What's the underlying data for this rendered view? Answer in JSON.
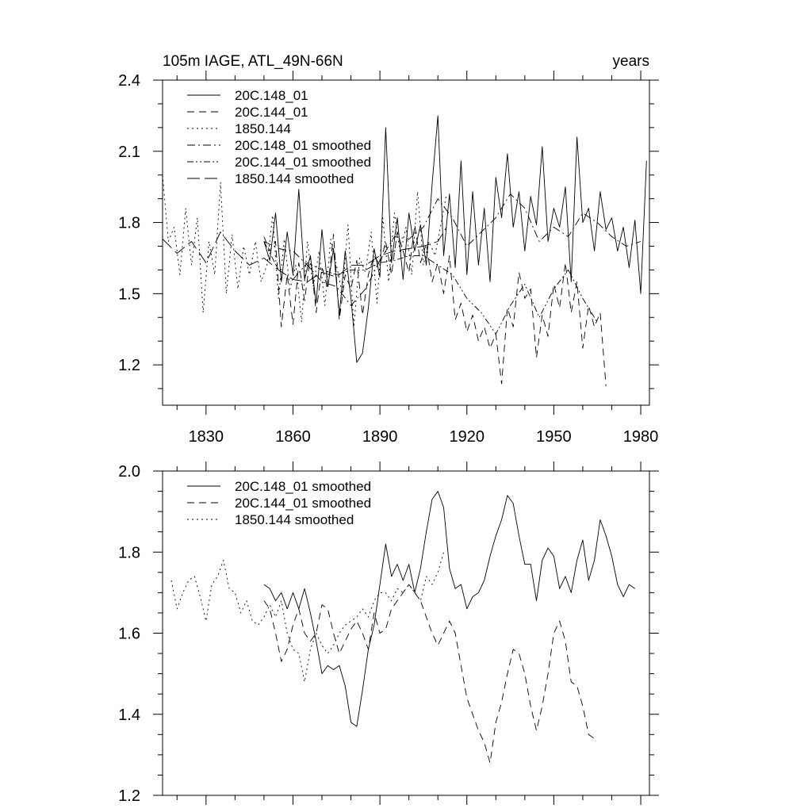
{
  "chart_data": [
    {
      "type": "line",
      "title": "105m IAGE, ATL_49N-66N",
      "units_label": "years",
      "xlim": [
        1815,
        1983
      ],
      "ylim": [
        1.03,
        2.4
      ],
      "x_ticks": [
        1830,
        1860,
        1890,
        1920,
        1950,
        1980
      ],
      "x_tick_labels": [
        "1830",
        "1860",
        "1890",
        "1920",
        "1950",
        "1980"
      ],
      "y_ticks": [
        1.2,
        1.5,
        1.8,
        2.1,
        2.4
      ],
      "y_tick_labels": [
        "1.2",
        "1.5",
        "1.8",
        "2.1",
        "2.4"
      ],
      "legend": [
        "20C.148_01",
        "20C.144_01",
        "1850.144",
        "20C.148_01 smoothed",
        "20C.144_01 smoothed",
        "1850.144 smoothed"
      ],
      "series": [
        {
          "name": "20C.148_01",
          "style": "solid",
          "x": [
            1850,
            1852,
            1854,
            1856,
            1858,
            1860,
            1862,
            1864,
            1866,
            1868,
            1870,
            1872,
            1874,
            1876,
            1878,
            1880,
            1882,
            1884,
            1886,
            1888,
            1890,
            1892,
            1894,
            1896,
            1898,
            1900,
            1902,
            1904,
            1906,
            1908,
            1910,
            1912,
            1914,
            1916,
            1918,
            1920,
            1922,
            1924,
            1926,
            1928,
            1930,
            1932,
            1934,
            1936,
            1938,
            1940,
            1942,
            1944,
            1946,
            1948,
            1950,
            1952,
            1954,
            1956,
            1958,
            1960,
            1962,
            1964,
            1966,
            1968,
            1970,
            1972,
            1974,
            1976,
            1978,
            1980,
            1982
          ],
          "values": [
            1.72,
            1.64,
            1.84,
            1.55,
            1.76,
            1.58,
            1.94,
            1.56,
            1.66,
            1.46,
            1.77,
            1.53,
            1.69,
            1.41,
            1.68,
            1.48,
            1.21,
            1.25,
            1.44,
            1.69,
            1.57,
            2.2,
            1.63,
            1.82,
            1.56,
            1.84,
            1.68,
            1.79,
            1.62,
            1.96,
            2.25,
            1.66,
            1.92,
            1.61,
            2.06,
            1.58,
            1.93,
            1.62,
            1.86,
            1.55,
            1.99,
            1.82,
            2.09,
            1.78,
            1.93,
            1.68,
            1.91,
            1.79,
            2.12,
            1.72,
            1.86,
            1.78,
            1.95,
            1.55,
            2.16,
            1.8,
            1.86,
            1.68,
            1.93,
            1.77,
            1.82,
            1.68,
            1.78,
            1.61,
            1.81,
            1.5,
            2.06
          ]
        },
        {
          "name": "20C.144_01",
          "style": "dashed",
          "x": [
            1850,
            1852,
            1854,
            1856,
            1858,
            1860,
            1862,
            1864,
            1866,
            1868,
            1870,
            1872,
            1874,
            1876,
            1878,
            1880,
            1882,
            1884,
            1886,
            1888,
            1890,
            1892,
            1894,
            1896,
            1898,
            1900,
            1902,
            1904,
            1906,
            1908,
            1910,
            1912,
            1914,
            1916,
            1918,
            1920,
            1922,
            1924,
            1926,
            1928,
            1930,
            1932,
            1934,
            1936,
            1938,
            1940,
            1942,
            1944,
            1946,
            1948,
            1950,
            1952,
            1954,
            1956,
            1958,
            1960,
            1962,
            1964,
            1966,
            1968
          ],
          "values": [
            1.74,
            1.68,
            1.72,
            1.36,
            1.58,
            1.37,
            1.63,
            1.47,
            1.66,
            1.42,
            1.61,
            1.52,
            1.75,
            1.39,
            1.58,
            1.52,
            1.64,
            1.41,
            1.58,
            1.66,
            1.62,
            1.72,
            1.58,
            1.76,
            1.68,
            1.59,
            1.79,
            1.63,
            1.71,
            1.55,
            1.63,
            1.5,
            1.66,
            1.39,
            1.46,
            1.34,
            1.41,
            1.3,
            1.36,
            1.27,
            1.33,
            1.12,
            1.44,
            1.36,
            1.59,
            1.48,
            1.52,
            1.23,
            1.41,
            1.32,
            1.54,
            1.44,
            1.63,
            1.42,
            1.55,
            1.27,
            1.45,
            1.36,
            1.42,
            1.11
          ]
        },
        {
          "name": "1850.144",
          "style": "dotted",
          "x": [
            1815,
            1817,
            1819,
            1821,
            1823,
            1825,
            1827,
            1829,
            1831,
            1833,
            1835,
            1837,
            1839,
            1841,
            1843,
            1845,
            1847,
            1849,
            1851,
            1853,
            1855,
            1857,
            1859,
            1861,
            1863,
            1865,
            1867,
            1869,
            1871,
            1873,
            1875,
            1877,
            1879,
            1881,
            1883,
            1885,
            1887,
            1889,
            1891,
            1893,
            1895,
            1897,
            1899,
            1901,
            1903,
            1905,
            1907,
            1909,
            1911,
            1913
          ],
          "values": [
            2.0,
            1.72,
            1.78,
            1.58,
            1.86,
            1.62,
            1.82,
            1.42,
            1.72,
            1.58,
            1.97,
            1.5,
            1.75,
            1.52,
            1.7,
            1.58,
            1.72,
            1.55,
            1.62,
            1.83,
            1.48,
            1.73,
            1.52,
            1.62,
            1.38,
            1.72,
            1.53,
            1.68,
            1.45,
            1.73,
            1.62,
            1.5,
            1.79,
            1.36,
            1.65,
            1.59,
            1.76,
            1.46,
            1.82,
            1.55,
            1.84,
            1.67,
            1.78,
            1.58,
            1.93,
            1.62,
            1.72,
            1.66,
            1.79,
            1.92
          ]
        },
        {
          "name": "20C.148_01 smoothed",
          "style": "dashdot",
          "x": [
            1850,
            1855,
            1860,
            1865,
            1870,
            1875,
            1880,
            1885,
            1890,
            1895,
            1900,
            1905,
            1910,
            1915,
            1920,
            1925,
            1930,
            1935,
            1940,
            1945,
            1950,
            1955,
            1960,
            1965,
            1970,
            1975,
            1980
          ],
          "values": [
            1.72,
            1.69,
            1.68,
            1.62,
            1.55,
            1.53,
            1.45,
            1.52,
            1.64,
            1.74,
            1.73,
            1.78,
            1.9,
            1.82,
            1.7,
            1.76,
            1.82,
            1.92,
            1.86,
            1.72,
            1.78,
            1.74,
            1.84,
            1.8,
            1.74,
            1.7,
            1.72
          ]
        },
        {
          "name": "20C.144_01 smoothed",
          "style": "dashdotdot",
          "x": [
            1850,
            1855,
            1860,
            1865,
            1870,
            1875,
            1880,
            1885,
            1890,
            1895,
            1900,
            1905,
            1910,
            1915,
            1920,
            1925,
            1930,
            1935,
            1940,
            1945,
            1950,
            1955,
            1960,
            1965
          ],
          "values": [
            1.72,
            1.6,
            1.56,
            1.63,
            1.6,
            1.58,
            1.6,
            1.6,
            1.63,
            1.64,
            1.66,
            1.66,
            1.62,
            1.58,
            1.48,
            1.42,
            1.33,
            1.45,
            1.54,
            1.4,
            1.52,
            1.6,
            1.48,
            1.38
          ]
        },
        {
          "name": "1850.144 smoothed",
          "style": "longdash",
          "x": [
            1815,
            1820,
            1825,
            1830,
            1835,
            1840,
            1845,
            1850,
            1855,
            1860,
            1865,
            1870,
            1875,
            1880,
            1885,
            1890,
            1895,
            1900,
            1905,
            1910,
            1913
          ],
          "values": [
            1.73,
            1.67,
            1.72,
            1.63,
            1.76,
            1.68,
            1.62,
            1.65,
            1.6,
            1.56,
            1.55,
            1.59,
            1.57,
            1.62,
            1.62,
            1.66,
            1.68,
            1.69,
            1.7,
            1.72,
            1.78
          ]
        }
      ]
    },
    {
      "type": "line",
      "title": "",
      "xlim": [
        1815,
        1983
      ],
      "ylim": [
        1.2,
        2.0
      ],
      "x_ticks": [
        1830,
        1860,
        1890,
        1920,
        1950,
        1980
      ],
      "x_tick_labels": [],
      "y_ticks": [
        1.2,
        1.4,
        1.6,
        1.8,
        2.0
      ],
      "y_tick_labels": [
        "1.2",
        "1.4",
        "1.6",
        "1.8",
        "2.0"
      ],
      "legend": [
        "20C.148_01 smoothed",
        "20C.144_01 smoothed",
        "1850.144 smoothed"
      ],
      "series": [
        {
          "name": "20C.148_01 smoothed",
          "style": "solid",
          "x": [
            1850,
            1852,
            1854,
            1856,
            1858,
            1860,
            1862,
            1864,
            1866,
            1868,
            1870,
            1872,
            1874,
            1876,
            1878,
            1880,
            1882,
            1884,
            1886,
            1888,
            1890,
            1892,
            1894,
            1896,
            1898,
            1900,
            1902,
            1904,
            1906,
            1908,
            1910,
            1912,
            1914,
            1916,
            1918,
            1920,
            1922,
            1924,
            1926,
            1928,
            1930,
            1932,
            1934,
            1936,
            1938,
            1940,
            1942,
            1944,
            1946,
            1948,
            1950,
            1952,
            1954,
            1956,
            1958,
            1960,
            1962,
            1964,
            1966,
            1968,
            1970,
            1972,
            1974,
            1976,
            1978
          ],
          "values": [
            1.72,
            1.71,
            1.68,
            1.7,
            1.66,
            1.7,
            1.66,
            1.71,
            1.65,
            1.58,
            1.5,
            1.52,
            1.51,
            1.52,
            1.47,
            1.38,
            1.37,
            1.46,
            1.56,
            1.62,
            1.72,
            1.82,
            1.74,
            1.77,
            1.73,
            1.77,
            1.7,
            1.76,
            1.85,
            1.93,
            1.95,
            1.91,
            1.76,
            1.71,
            1.72,
            1.66,
            1.69,
            1.7,
            1.73,
            1.79,
            1.84,
            1.88,
            1.94,
            1.92,
            1.84,
            1.77,
            1.77,
            1.68,
            1.78,
            1.81,
            1.79,
            1.71,
            1.74,
            1.7,
            1.78,
            1.83,
            1.73,
            1.78,
            1.88,
            1.84,
            1.79,
            1.72,
            1.69,
            1.72,
            1.71
          ]
        },
        {
          "name": "20C.144_01 smoothed",
          "style": "dashed",
          "x": [
            1850,
            1852,
            1854,
            1856,
            1858,
            1860,
            1862,
            1864,
            1866,
            1868,
            1870,
            1872,
            1874,
            1876,
            1878,
            1880,
            1882,
            1884,
            1886,
            1888,
            1890,
            1892,
            1894,
            1896,
            1898,
            1900,
            1902,
            1904,
            1906,
            1908,
            1910,
            1912,
            1914,
            1916,
            1918,
            1920,
            1922,
            1924,
            1926,
            1928,
            1930,
            1932,
            1934,
            1936,
            1938,
            1940,
            1942,
            1944,
            1946,
            1948,
            1950,
            1952,
            1954,
            1956,
            1958,
            1960,
            1962,
            1964
          ],
          "values": [
            1.68,
            1.66,
            1.6,
            1.53,
            1.56,
            1.62,
            1.66,
            1.6,
            1.58,
            1.6,
            1.67,
            1.66,
            1.6,
            1.55,
            1.58,
            1.61,
            1.63,
            1.6,
            1.56,
            1.65,
            1.6,
            1.61,
            1.66,
            1.68,
            1.7,
            1.72,
            1.7,
            1.68,
            1.64,
            1.6,
            1.57,
            1.6,
            1.63,
            1.6,
            1.52,
            1.44,
            1.4,
            1.36,
            1.33,
            1.28,
            1.38,
            1.43,
            1.5,
            1.56,
            1.55,
            1.5,
            1.42,
            1.36,
            1.42,
            1.5,
            1.6,
            1.63,
            1.58,
            1.48,
            1.47,
            1.42,
            1.35,
            1.34
          ]
        },
        {
          "name": "1850.144 smoothed",
          "style": "dotted",
          "x": [
            1818,
            1820,
            1822,
            1824,
            1826,
            1828,
            1830,
            1832,
            1834,
            1836,
            1838,
            1840,
            1842,
            1844,
            1846,
            1848,
            1850,
            1852,
            1854,
            1856,
            1858,
            1860,
            1862,
            1864,
            1866,
            1868,
            1870,
            1872,
            1874,
            1876,
            1878,
            1880,
            1882,
            1884,
            1886,
            1888,
            1890,
            1892,
            1894,
            1896,
            1898,
            1900,
            1902,
            1904,
            1906,
            1908,
            1910,
            1912
          ],
          "values": [
            1.73,
            1.66,
            1.7,
            1.73,
            1.74,
            1.69,
            1.63,
            1.72,
            1.74,
            1.78,
            1.71,
            1.7,
            1.65,
            1.68,
            1.63,
            1.62,
            1.64,
            1.67,
            1.64,
            1.68,
            1.6,
            1.56,
            1.55,
            1.48,
            1.56,
            1.6,
            1.57,
            1.55,
            1.57,
            1.6,
            1.62,
            1.63,
            1.64,
            1.66,
            1.64,
            1.68,
            1.7,
            1.7,
            1.68,
            1.71,
            1.7,
            1.72,
            1.7,
            1.68,
            1.74,
            1.72,
            1.75,
            1.8
          ]
        }
      ]
    }
  ]
}
